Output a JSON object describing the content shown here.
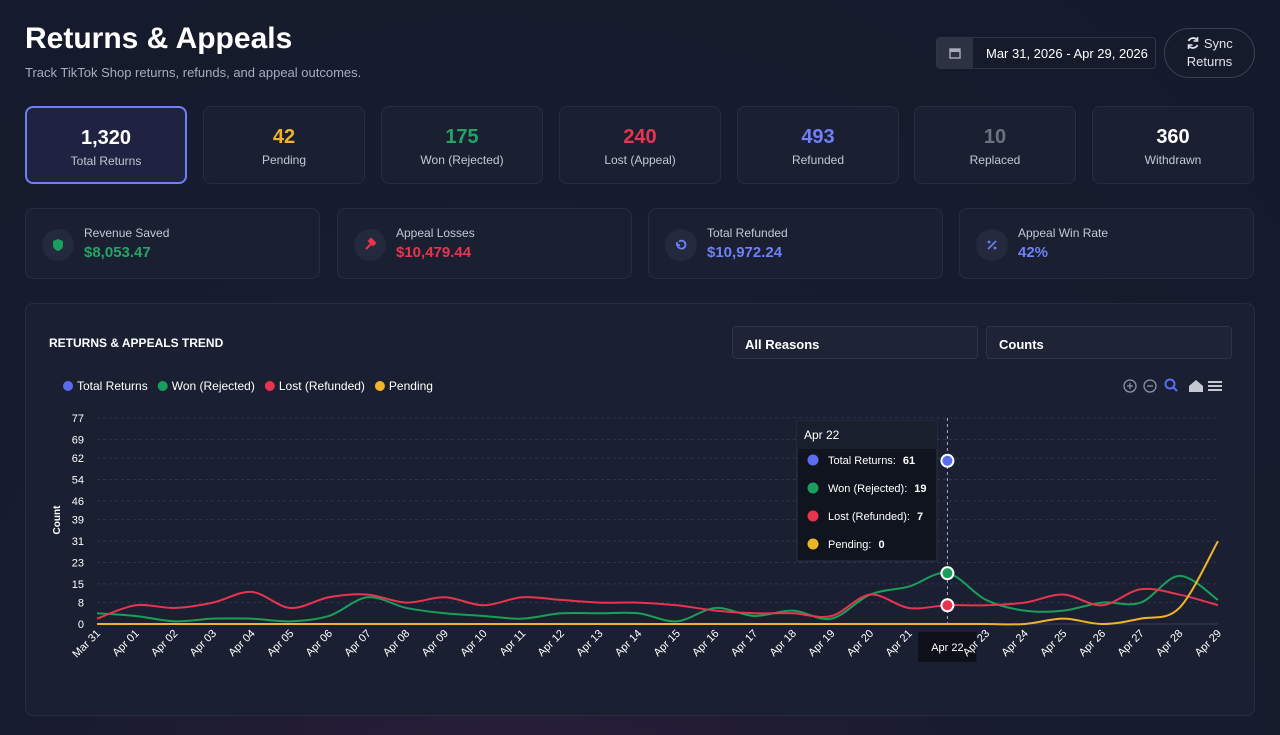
{
  "header": {
    "title": "Returns & Appeals",
    "subtitle": "Track TikTok Shop returns, refunds, and appeal outcomes.",
    "date_range": "Mar 31, 2026 - Apr 29, 2026",
    "sync_button": [
      "Sync",
      "Returns"
    ]
  },
  "stats": [
    {
      "value": "1,320",
      "label": "Total Returns",
      "color": "#ffffff"
    },
    {
      "value": "42",
      "label": "Pending",
      "color": "#f0b429"
    },
    {
      "value": "175",
      "label": "Won (Rejected)",
      "color": "#22a565"
    },
    {
      "value": "240",
      "label": "Lost (Appeal)",
      "color": "#e8344e"
    },
    {
      "value": "493",
      "label": "Refunded",
      "color": "#7080f5"
    },
    {
      "value": "10",
      "label": "Replaced",
      "color": "#6b7280"
    },
    {
      "value": "360",
      "label": "Withdrawn",
      "color": "#ffffff"
    }
  ],
  "summary": [
    {
      "label": "Revenue Saved",
      "value": "$8,053.47",
      "color": "#22a565"
    },
    {
      "label": "Appeal Losses",
      "value": "$10,479.44",
      "color": "#e8344e"
    },
    {
      "label": "Total Refunded",
      "value": "$10,972.24",
      "color": "#7080f5"
    },
    {
      "label": "Appeal Win Rate",
      "value": "42%",
      "color": "#7080f5"
    }
  ],
  "filters": [
    "All Reasons",
    "Counts"
  ],
  "chart_data": {
    "type": "line",
    "title": "RETURNS & APPEALS TREND",
    "y_label": "Count",
    "categories": [
      "Mar 31",
      "Apr 01",
      "Apr 02",
      "Apr 03",
      "Apr 04",
      "Apr 05",
      "Apr 06",
      "Apr 07",
      "Apr 08",
      "Apr 09",
      "Apr 10",
      "Apr 11",
      "Apr 12",
      "Apr 13",
      "Apr 14",
      "Apr 15",
      "Apr 16",
      "Apr 17",
      "Apr 18",
      "Apr 19",
      "Apr 20",
      "Apr 21",
      "Apr 22",
      "Apr 23",
      "Apr 24",
      "Apr 25",
      "Apr 26",
      "Apr 27",
      "Apr 28",
      "Apr 29"
    ],
    "series": [
      {
        "name": "Total Returns",
        "color": "#5b6cf0",
        "values": [
          null,
          null,
          null,
          null,
          null,
          null,
          null,
          null,
          null,
          null,
          null,
          null,
          null,
          null,
          null,
          null,
          null,
          null,
          null,
          null,
          null,
          null,
          61,
          null,
          null,
          null,
          null,
          null,
          null,
          null
        ]
      },
      {
        "name": "Won (Rejected)",
        "color": "#1a9e5c",
        "values": [
          4,
          3,
          1,
          2,
          2,
          1,
          3,
          10,
          6,
          4,
          3,
          2,
          4,
          4,
          4,
          1,
          6,
          3,
          5,
          2,
          11,
          14,
          19,
          9,
          5,
          5,
          8,
          8,
          18,
          9
        ]
      },
      {
        "name": "Lost (Refunded)",
        "color": "#e8344e",
        "values": [
          2,
          7,
          6,
          8,
          12,
          6,
          10,
          11,
          8,
          10,
          7,
          10,
          9,
          8,
          8,
          7,
          5,
          4,
          4,
          3,
          11,
          6,
          7,
          7,
          8,
          11,
          7,
          13,
          11,
          7
        ]
      },
      {
        "name": "Pending",
        "color": "#f0b429",
        "values": [
          0,
          0,
          0,
          0,
          0,
          0,
          0,
          0,
          0,
          0,
          0,
          0,
          0,
          0,
          0,
          0,
          0,
          0,
          0,
          0,
          0,
          0,
          0,
          0,
          0,
          2,
          0,
          2,
          6,
          31
        ]
      }
    ],
    "ylim": [
      0,
      77
    ],
    "yticks": [
      0,
      8,
      15,
      23,
      31,
      39,
      46,
      54,
      62,
      69,
      77
    ],
    "grid": true,
    "tooltip": {
      "index": 22,
      "labels": [
        "Total Returns:",
        "Won (Rejected):",
        "Lost (Refunded):",
        "Pending:"
      ]
    }
  }
}
